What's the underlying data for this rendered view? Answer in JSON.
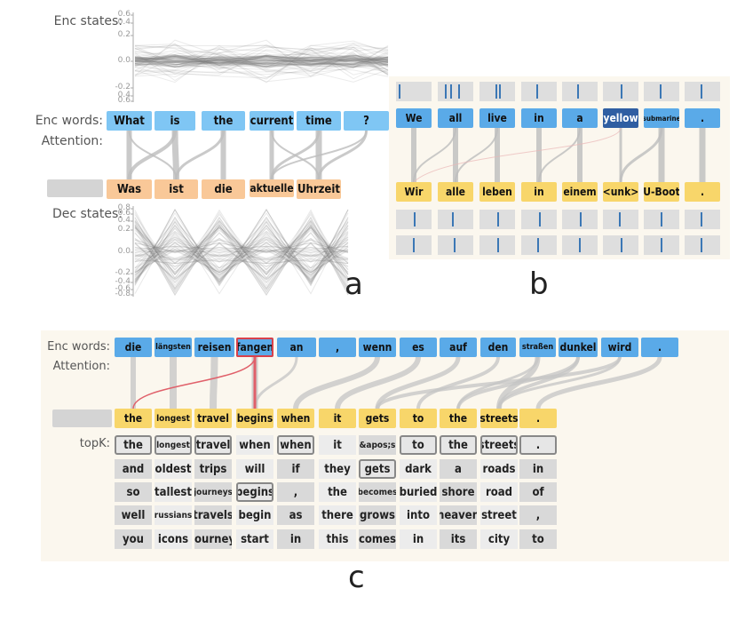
{
  "panel_a": {
    "label_enc_states": "Enc states:",
    "label_enc_words": "Enc words:",
    "label_attention": "Attention:",
    "label_dec_states": "Dec states:",
    "enc_ticks": [
      "0.6",
      "0.4",
      "0.2",
      "0.0",
      "-0.2",
      "0.4",
      "0.6"
    ],
    "dec_ticks": [
      "0.8",
      "0.6",
      "0.4",
      "0.2",
      "0.0",
      "-0.2",
      "-0.4",
      "-0.6",
      "-0.8"
    ],
    "enc_words": [
      "What",
      "is",
      "the",
      "current",
      "time",
      "?"
    ],
    "dec_words": [
      "Was",
      "ist",
      "die",
      "aktuelle",
      "Uhrzeit"
    ],
    "caption": "a"
  },
  "panel_b": {
    "enc_words": [
      "We",
      "all",
      "live",
      "in",
      "a",
      "yellow",
      "submarine",
      "."
    ],
    "dec_words": [
      "Wir",
      "alle",
      "leben",
      "in",
      "einem",
      "<unk>",
      "U-Boot",
      "."
    ],
    "caption": "b"
  },
  "panel_c": {
    "label_enc_words": "Enc words:",
    "label_attention": "Attention:",
    "label_topk": "topK:",
    "enc_words": [
      "die",
      "längsten",
      "reisen",
      "fangen",
      "an",
      ",",
      "wenn",
      "es",
      "auf",
      "den",
      "straßen",
      "dunkel",
      "wird",
      "."
    ],
    "dec_words": [
      "the",
      "longest",
      "travel",
      "begins",
      "when",
      "it",
      "gets",
      "to",
      "the",
      "streets",
      "."
    ],
    "topk": [
      [
        "the",
        "longest",
        "travel",
        "when",
        "when",
        "it",
        "&apos;s",
        "to",
        "the",
        "streets",
        "."
      ],
      [
        "and",
        "oldest",
        "trips",
        "will",
        "if",
        "they",
        "gets",
        "dark",
        "a",
        "roads",
        "in"
      ],
      [
        "so",
        "tallest",
        "journeys",
        "begins",
        ",",
        "the",
        "becomes",
        "buried",
        "shore",
        "road",
        "of"
      ],
      [
        "well",
        "russians",
        "travels",
        "begin",
        "as",
        "there",
        "grows",
        "into",
        "heaven",
        "street",
        ","
      ],
      [
        "you",
        "icons",
        "journey",
        "start",
        "in",
        "this",
        "comes",
        "in",
        "its",
        "city",
        "to"
      ]
    ],
    "caption": "c"
  },
  "colors": {
    "enc": "#7fc6f4",
    "dec": "#f9c898",
    "enc_b": "#5aaae8",
    "dec_b": "#f8d66a",
    "selected_red": "#d8414b",
    "selected_blue": "#2f5ea2"
  }
}
